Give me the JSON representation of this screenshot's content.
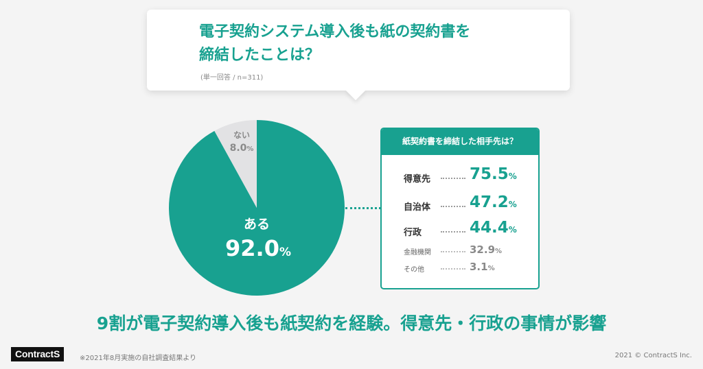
{
  "question": {
    "title": "電子契約システム導入後も紙の契約書を\n締結したことは？",
    "sub": "(単一回答 / n=311)"
  },
  "chart_data": [
    {
      "type": "pie",
      "categories": [
        "ある",
        "ない"
      ],
      "values": [
        92.0,
        8.0
      ],
      "labels": [
        "92.0",
        "8.0"
      ],
      "unit": "%",
      "colors": [
        "#18a190",
        "#e2e2e4"
      ]
    },
    {
      "type": "bar",
      "title": "紙契約書を締結した相手先は？",
      "categories": [
        "得意先",
        "自治体",
        "行政",
        "金融機関",
        "その他"
      ],
      "values": [
        75.5,
        47.2,
        44.4,
        32.9,
        3.1
      ],
      "labels": [
        "75.5",
        "47.2",
        "44.4",
        "32.9",
        "3.1"
      ],
      "unit": "%"
    }
  ],
  "detail": {
    "title": "紙契約書を締結した相手先は？",
    "items": [
      {
        "label": "得意先",
        "value": "75.5",
        "unit": "%"
      },
      {
        "label": "自治体",
        "value": "47.2",
        "unit": "%"
      },
      {
        "label": "行政",
        "value": "44.4",
        "unit": "%"
      },
      {
        "label": "金融機関",
        "value": "32.9",
        "unit": "%"
      },
      {
        "label": "その他",
        "value": "3.1",
        "unit": "%"
      }
    ]
  },
  "headline": "9割が電子契約導入後も紙契約を経験。得意先・行政の事情が影響",
  "footer": {
    "logo": "ContractS",
    "note": "※2021年8月実施の自社調査結果より",
    "copyright": "2021 © ContractS Inc."
  },
  "colors": {
    "accent": "#18a190",
    "pie_minor": "#e2e2e4",
    "background": "#f4f4f4"
  }
}
